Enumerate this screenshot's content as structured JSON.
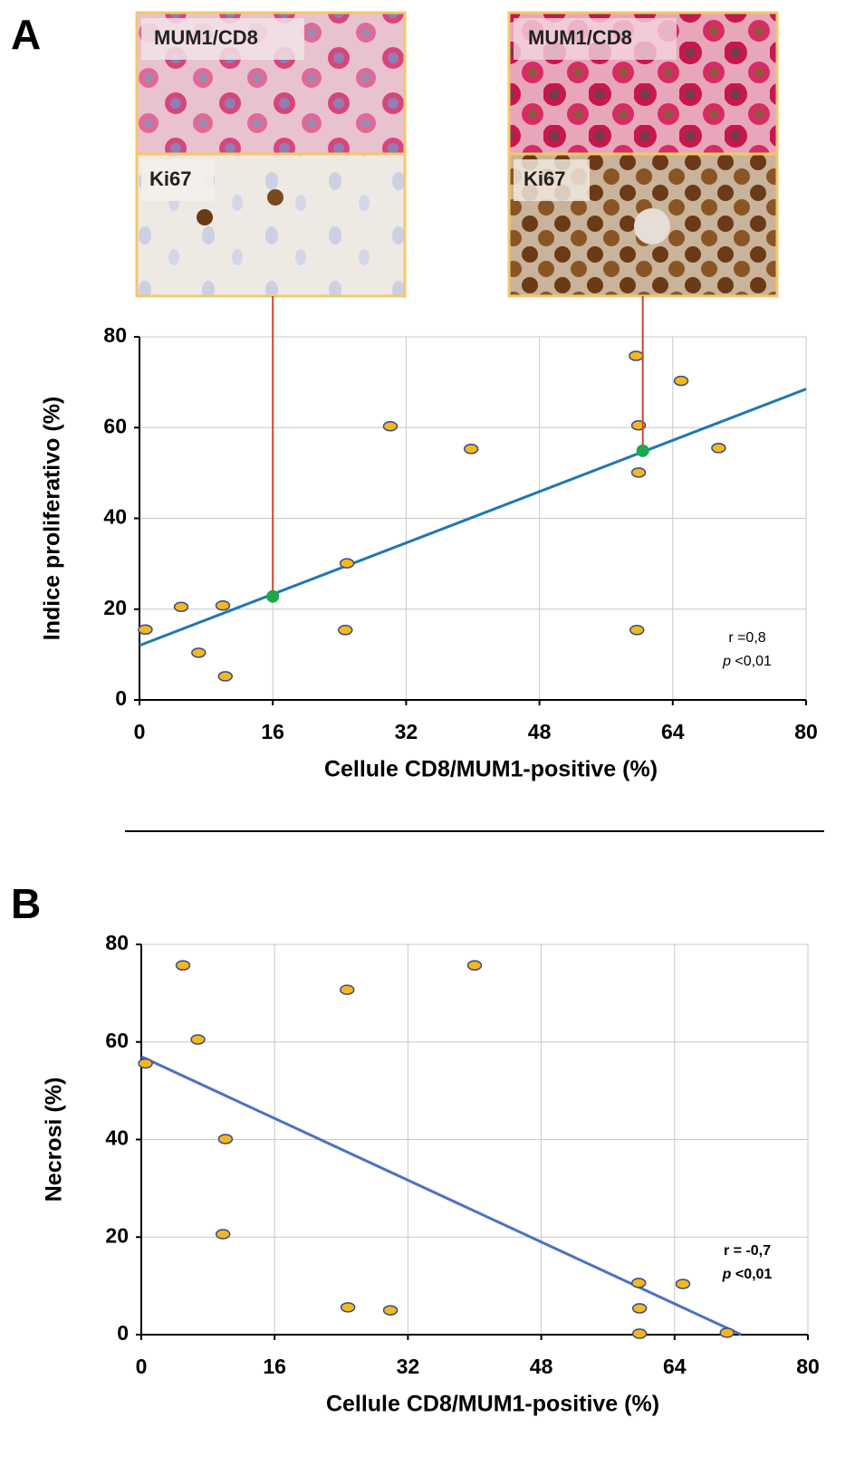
{
  "figure": {
    "panel_labels": [
      "A",
      "B"
    ],
    "micrographs": [
      {
        "top_label": "MUM1/CD8",
        "bottom_label": "Ki67"
      },
      {
        "top_label": "MUM1/CD8",
        "bottom_label": "Ki67"
      }
    ]
  },
  "chart_data": [
    {
      "type": "scatter",
      "x_label": "Cellule CD8/MUM1-positive (%)",
      "y_label": "Indice proliferativo (%)",
      "xlim": [
        0,
        80
      ],
      "xticks": [
        0,
        16,
        32,
        48,
        64,
        80
      ],
      "ylim": [
        0,
        80
      ],
      "yticks": [
        0,
        20,
        40,
        60,
        80
      ],
      "grid": true,
      "series": [
        {
          "color": "#f2b81c",
          "x": [
            0.7,
            5,
            7.1,
            10,
            10.3,
            24.7,
            24.9,
            30.1,
            39.8,
            59.6,
            59.9,
            59.9,
            59.7,
            65,
            69.5
          ],
          "values": [
            15.5,
            20.5,
            10.4,
            20.8,
            5.2,
            15.4,
            30.1,
            60.3,
            55.3,
            75.8,
            60.5,
            50.1,
            15.4,
            70.3,
            55.5
          ]
        },
        {
          "color": "#1aa84a",
          "x": [
            16,
            60.4
          ],
          "values": [
            22.8,
            54.9
          ]
        }
      ],
      "trendline": {
        "color": "#1f77b4",
        "x": [
          0,
          80
        ],
        "values": [
          12,
          68.5
        ]
      },
      "annotations": [
        "r =0,8",
        "p <0,01"
      ]
    },
    {
      "type": "scatter",
      "x_label": "Cellule CD8/MUM1-positive (%)",
      "y_label": "Necrosi (%)",
      "xlim": [
        0,
        80
      ],
      "xticks": [
        0,
        16,
        32,
        48,
        64,
        80
      ],
      "ylim": [
        0,
        80
      ],
      "yticks": [
        0,
        20,
        40,
        60,
        80
      ],
      "grid": true,
      "series": [
        {
          "color": "#f2b81c",
          "x": [
            0.5,
            5,
            6.8,
            10.1,
            9.8,
            24.7,
            24.8,
            29.9,
            40,
            59.7,
            59.8,
            59.8,
            65,
            70.3
          ],
          "values": [
            55.6,
            75.7,
            60.5,
            40.1,
            20.6,
            70.7,
            5.6,
            5,
            75.7,
            10.6,
            5.4,
            0.2,
            10.4,
            0.4
          ]
        }
      ],
      "trendline": {
        "color": "#4a72c4",
        "x": [
          0,
          72
        ],
        "values": [
          57,
          0
        ]
      },
      "annotations": [
        "r = -0,7",
        "p <0,01"
      ]
    }
  ]
}
